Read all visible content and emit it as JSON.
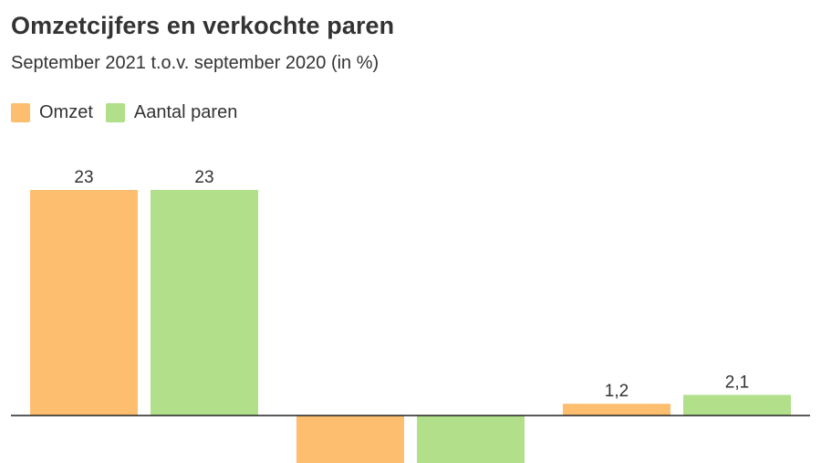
{
  "chart_data": {
    "type": "bar",
    "title": "Omzetcijfers en verkochte paren",
    "subtitle": "September 2021 t.o.v. september 2020 (in %)",
    "categories": [
      "",
      "",
      ""
    ],
    "series": [
      {
        "name": "Omzet",
        "color": "#fdbf6f",
        "values": [
          23,
          -5,
          1.2
        ],
        "labels": [
          "23",
          "",
          "1,2"
        ]
      },
      {
        "name": "Aantal paren",
        "color": "#b2df8a",
        "values": [
          23,
          -5,
          2.1
        ],
        "labels": [
          "23",
          "",
          "2,1"
        ]
      }
    ],
    "ylim": [
      -5,
      23
    ],
    "grid": false,
    "legend_position": "top-left"
  }
}
